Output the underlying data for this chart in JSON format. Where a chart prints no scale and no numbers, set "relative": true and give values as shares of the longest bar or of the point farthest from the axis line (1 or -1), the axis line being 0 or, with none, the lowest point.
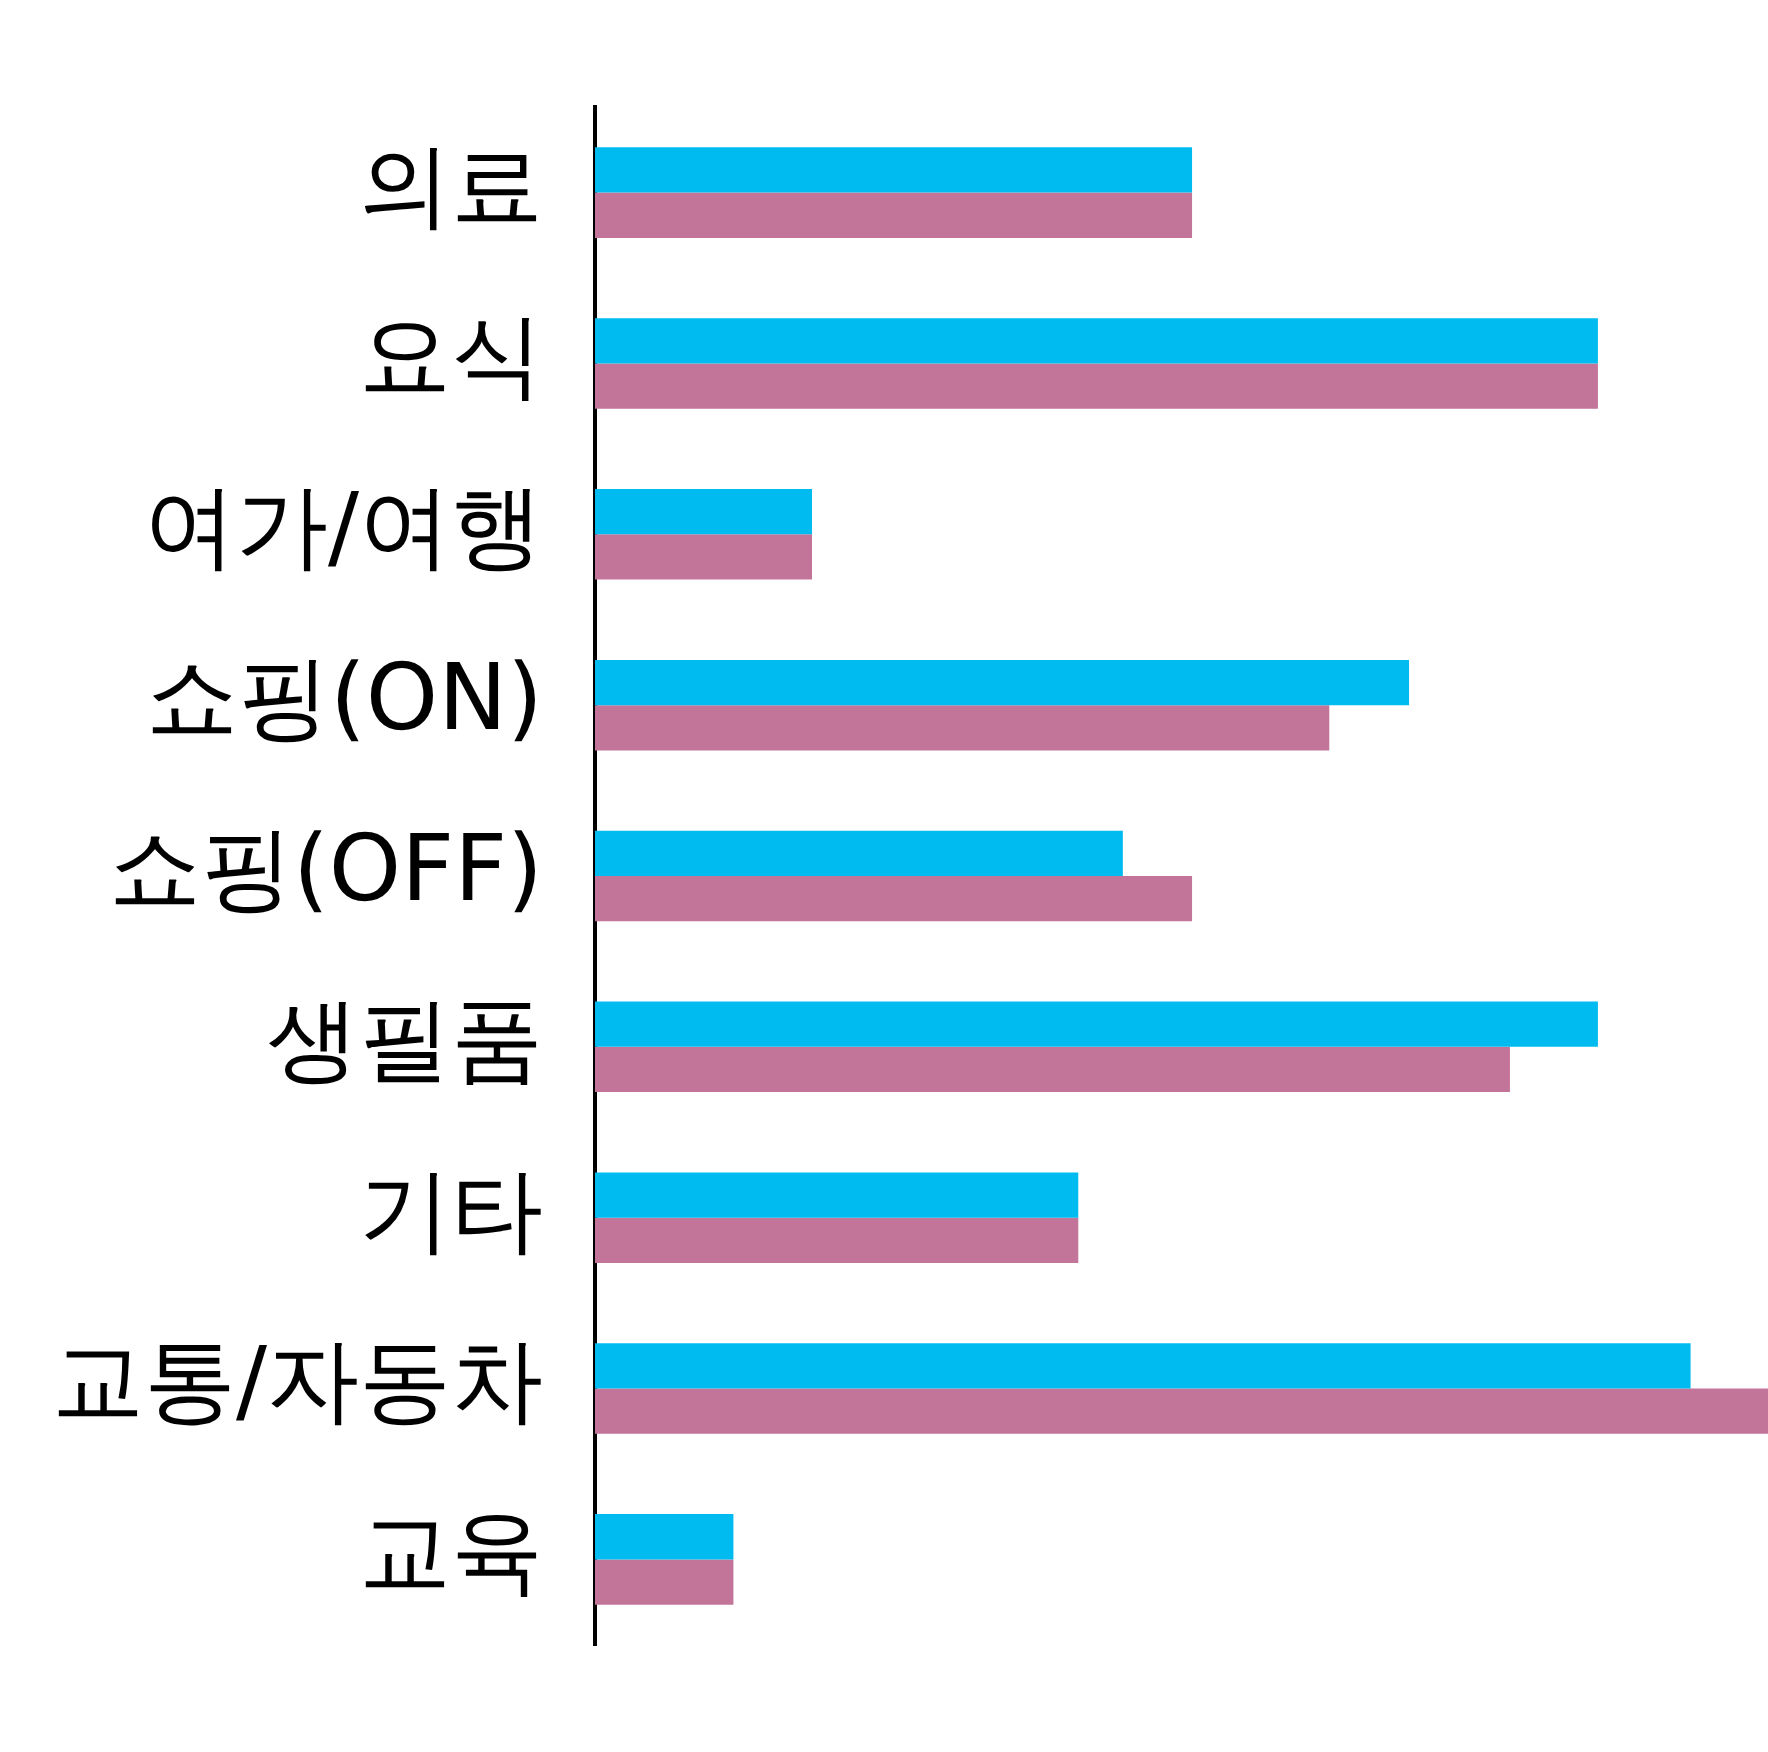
{
  "chart_data": {
    "type": "bar",
    "orientation": "horizontal",
    "relative": true,
    "grid": false,
    "legend": false,
    "tick_labels": "y",
    "categories": [
      "의료",
      "요식",
      "여가/여행",
      "쇼핑(ON)",
      "쇼핑(OFF)",
      "생필품",
      "기타",
      "교통/자동차",
      "교육"
    ],
    "series": [
      {
        "color": "#00bbef",
        "values": [
          0.509,
          0.855,
          0.185,
          0.694,
          0.45,
          0.855,
          0.412,
          0.934,
          0.118
        ]
      },
      {
        "color": "#c27499",
        "values": [
          0.509,
          0.855,
          0.185,
          0.626,
          0.509,
          0.78,
          0.412,
          1,
          0.118
        ]
      }
    ]
  }
}
